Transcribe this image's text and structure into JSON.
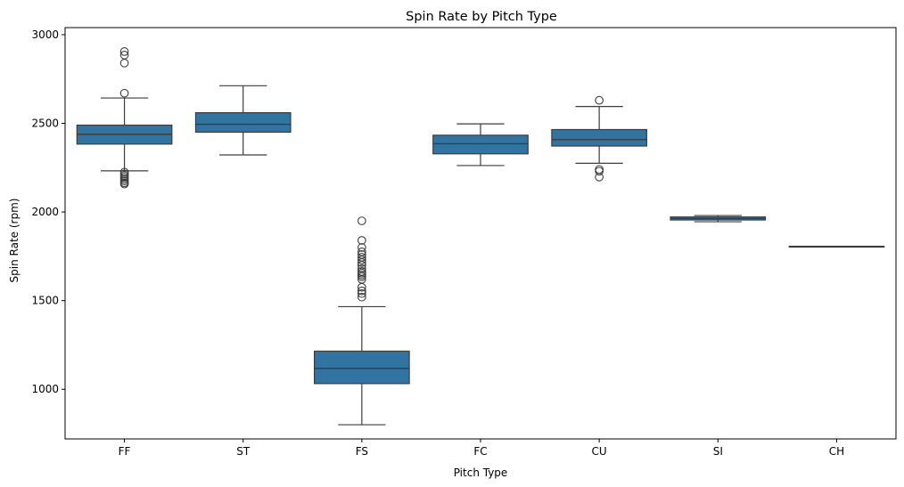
{
  "chart_data": {
    "type": "box",
    "title": "Spin Rate by Pitch Type",
    "xlabel": "Pitch Type",
    "ylabel": "Spin Rate (rpm)",
    "ylim": [
      720,
      3040
    ],
    "yticks": [
      1000,
      1500,
      2000,
      2500,
      3000
    ],
    "grid": false,
    "colors": {
      "box": "#3274a1",
      "line": "#3d3d3d"
    },
    "categories": [
      "FF",
      "ST",
      "FS",
      "FC",
      "CU",
      "SI",
      "CH"
    ],
    "boxes": [
      {
        "category": "FF",
        "whisker_low": 2232,
        "q1": 2383,
        "median": 2438,
        "q3": 2490,
        "whisker_high": 2643,
        "outliers": [
          2905,
          2885,
          2840,
          2670,
          2225,
          2215,
          2205,
          2195,
          2185,
          2175,
          2165,
          2158
        ]
      },
      {
        "category": "ST",
        "whisker_low": 2322,
        "q1": 2450,
        "median": 2495,
        "q3": 2560,
        "whisker_high": 2712,
        "outliers": []
      },
      {
        "category": "FS",
        "whisker_low": 800,
        "q1": 1032,
        "median": 1118,
        "q3": 1215,
        "whisker_high": 1466,
        "outliers": [
          1950,
          1840,
          1800,
          1775,
          1760,
          1745,
          1730,
          1715,
          1700,
          1680,
          1665,
          1655,
          1645,
          1635,
          1620,
          1575,
          1555,
          1540,
          1520
        ]
      },
      {
        "category": "FC",
        "whisker_low": 2262,
        "q1": 2328,
        "median": 2385,
        "q3": 2433,
        "whisker_high": 2497,
        "outliers": []
      },
      {
        "category": "CU",
        "whisker_low": 2275,
        "q1": 2372,
        "median": 2408,
        "q3": 2465,
        "whisker_high": 2595,
        "outliers": [
          2630,
          2240,
          2230,
          2197
        ]
      },
      {
        "category": "SI",
        "whisker_low": 1945,
        "q1": 1955,
        "median": 1963,
        "q3": 1972,
        "whisker_high": 1980,
        "outliers": []
      },
      {
        "category": "CH",
        "whisker_low": 1806,
        "q1": 1806,
        "median": 1806,
        "q3": 1806,
        "whisker_high": 1806,
        "outliers": []
      }
    ]
  }
}
